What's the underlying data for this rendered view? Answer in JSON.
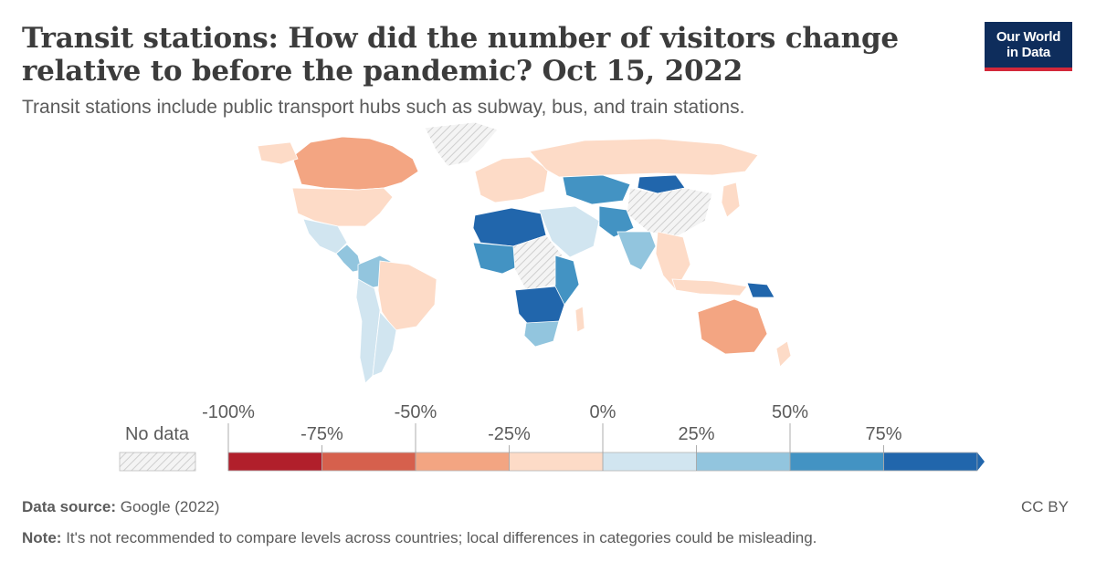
{
  "header": {
    "title": "Transit stations: How did the number of visitors change relative to before the pandemic? Oct 15, 2022",
    "subtitle": "Transit stations include public transport hubs such as subway, bus, and train stations."
  },
  "logo": {
    "line1": "Our World",
    "line2": "in Data"
  },
  "legend": {
    "no_data_label": "No data",
    "tick_labels": [
      "-100%",
      "-75%",
      "-50%",
      "-25%",
      "0%",
      "25%",
      "50%",
      "75%"
    ],
    "bin_colors": [
      "#b11f2b",
      "#d6604d",
      "#f3a582",
      "#fddbc7",
      "#d1e5f0",
      "#92c5de",
      "#4393c3",
      "#2166ac"
    ],
    "no_data_color": "#e6e6e6"
  },
  "footer": {
    "source_label": "Data source:",
    "source_value": "Google (2022)",
    "note_label": "Note:",
    "note_value": "It's not recommended to compare levels across countries; local differences in categories could be misleading.",
    "license": "CC BY"
  }
}
